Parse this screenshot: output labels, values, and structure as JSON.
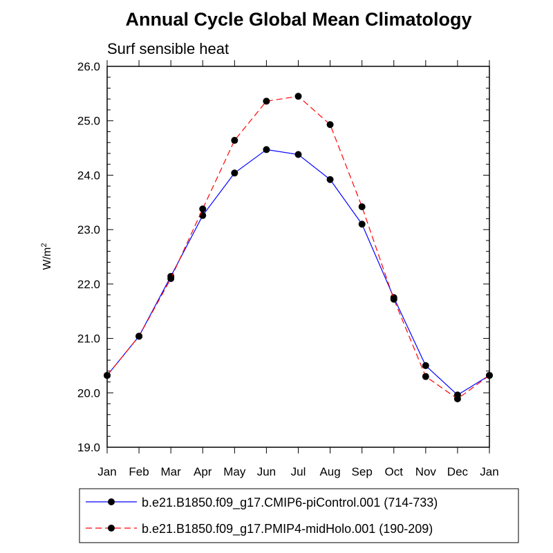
{
  "chart_data": {
    "type": "line",
    "title": "Annual Cycle Global Mean Climatology",
    "subtitle": "Surf sensible heat",
    "ylabel": "W/m",
    "ylabel_superscript": "2",
    "ylim": [
      19.0,
      26.0
    ],
    "yticks": [
      "19.0",
      "20.0",
      "21.0",
      "22.0",
      "23.0",
      "24.0",
      "25.0",
      "26.0"
    ],
    "categories": [
      "Jan",
      "Feb",
      "Mar",
      "Apr",
      "May",
      "Jun",
      "Jul",
      "Aug",
      "Sep",
      "Oct",
      "Nov",
      "Dec",
      "Jan"
    ],
    "series": [
      {
        "name": "b.e21.B1850.f09_g17.CMIP6-piControl.001 (714-733)",
        "color": "#0000ff",
        "dash": "solid",
        "values": [
          20.32,
          21.04,
          22.14,
          23.26,
          24.04,
          24.47,
          24.38,
          23.92,
          23.1,
          21.75,
          20.5,
          19.96,
          20.32
        ]
      },
      {
        "name": "b.e21.B1850.f09_g17.PMIP4-midHolo.001 (190-209)",
        "color": "#ff0000",
        "dash": "dashed",
        "values": [
          20.32,
          21.04,
          22.1,
          23.38,
          24.64,
          25.36,
          25.45,
          24.93,
          23.42,
          21.72,
          20.3,
          19.89,
          20.32
        ]
      }
    ],
    "grid": false,
    "legend_position": "bottom"
  }
}
